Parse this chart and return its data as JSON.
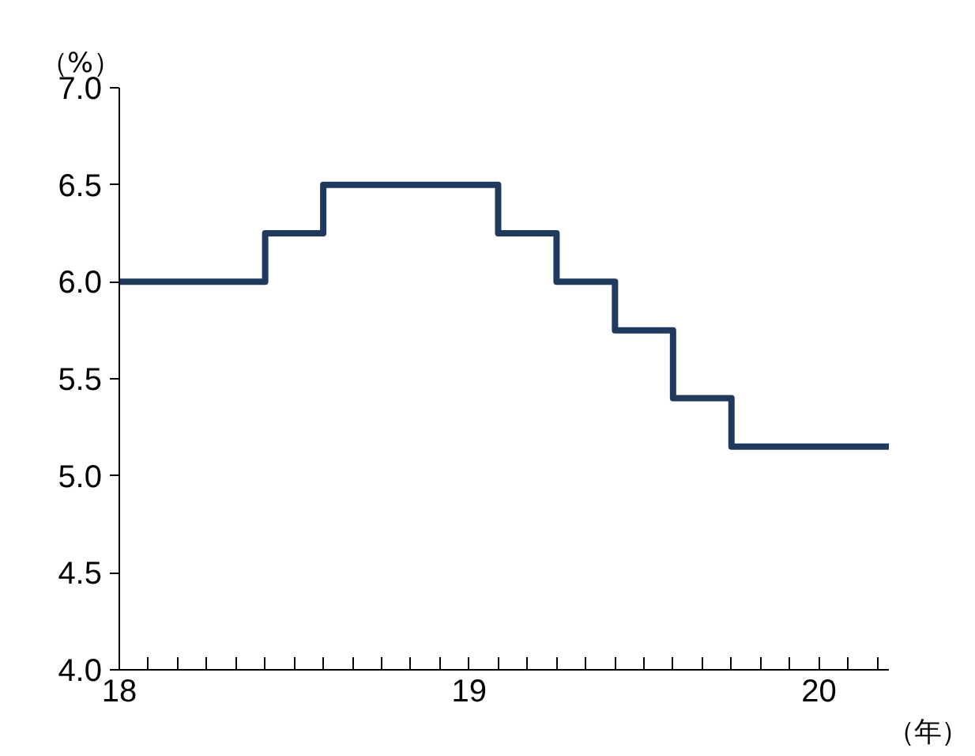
{
  "chart_data": {
    "type": "step",
    "xlabel": "（年）",
    "ylabel": "（%）",
    "x": [
      18,
      18.417,
      18.583,
      19.083,
      19.25,
      19.417,
      19.583,
      19.75,
      20.2
    ],
    "series": [
      {
        "color": "#1f3a5f",
        "values": [
          6.0,
          6.25,
          6.5,
          6.25,
          6.0,
          5.75,
          5.4,
          5.15,
          5.15
        ]
      }
    ],
    "xlim": [
      18,
      20.2
    ],
    "ylim": [
      4.0,
      7.0
    ],
    "yticks": [
      {
        "value": 4,
        "label": "4.0"
      },
      {
        "value": 4.5,
        "label": "4.5"
      },
      {
        "value": 5,
        "label": "5.0"
      },
      {
        "value": 5.5,
        "label": "5.5"
      },
      {
        "value": 6,
        "label": "6.0"
      },
      {
        "value": 6.5,
        "label": "6.5"
      },
      {
        "value": 7,
        "label": "7.0"
      }
    ],
    "xticks": [
      18,
      {
        "value": 18.083,
        "label": null
      },
      {
        "value": 18.167,
        "label": null
      },
      {
        "value": 18.25,
        "label": null
      },
      {
        "value": 18.333,
        "label": null
      },
      {
        "value": 18.417,
        "label": null
      },
      {
        "value": 18.5,
        "label": null
      },
      {
        "value": 18.583,
        "label": null
      },
      {
        "value": 18.667,
        "label": null
      },
      {
        "value": 18.75,
        "label": null
      },
      {
        "value": 18.833,
        "label": null
      },
      {
        "value": 18.917,
        "label": null
      },
      19,
      {
        "value": 19.083,
        "label": null
      },
      {
        "value": 19.167,
        "label": null
      },
      {
        "value": 19.25,
        "label": null
      },
      {
        "value": 19.333,
        "label": null
      },
      {
        "value": 19.417,
        "label": null
      },
      {
        "value": 19.5,
        "label": null
      },
      {
        "value": 19.583,
        "label": null
      },
      {
        "value": 19.667,
        "label": null
      },
      {
        "value": 19.75,
        "label": null
      },
      {
        "value": 19.833,
        "label": null
      },
      {
        "value": 19.917,
        "label": null
      },
      20,
      {
        "value": 20.083,
        "label": null
      },
      {
        "value": 20.167,
        "label": null
      }
    ],
    "grid": false
  }
}
